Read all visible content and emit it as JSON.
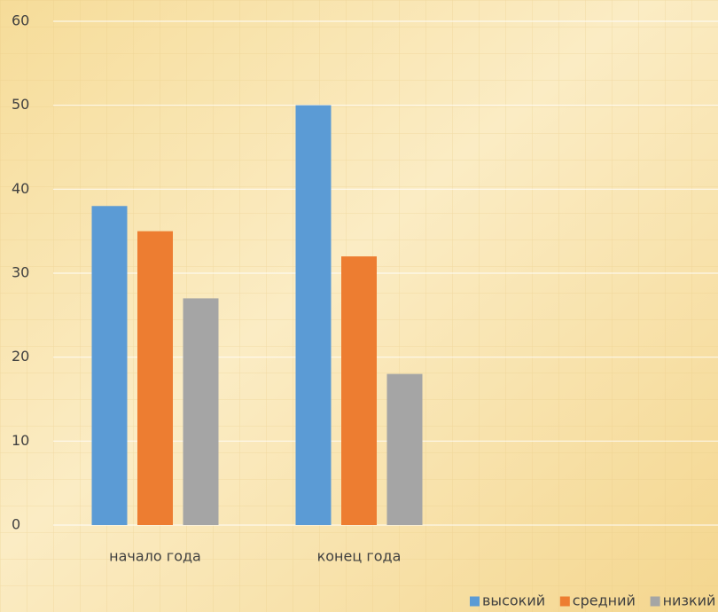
{
  "chart_data": {
    "type": "bar",
    "categories": [
      "начало года",
      "конец года"
    ],
    "series": [
      {
        "name": "высокий",
        "color": "#5b9bd5",
        "values": [
          38,
          50
        ]
      },
      {
        "name": "средний",
        "color": "#ed7d31",
        "values": [
          35,
          32
        ]
      },
      {
        "name": "низкий",
        "color": "#a5a5a5",
        "values": [
          27,
          18
        ]
      }
    ],
    "ylim": [
      0,
      60
    ],
    "yticks": [
      0,
      10,
      20,
      30,
      40,
      50,
      60
    ],
    "grid": true,
    "legend": "bottom-right"
  }
}
